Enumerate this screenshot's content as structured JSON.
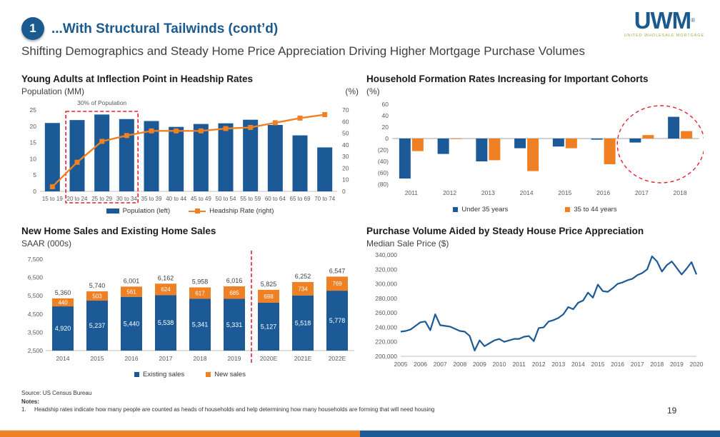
{
  "header": {
    "badge": "1",
    "title": "...With Structural Tailwinds (cont’d)",
    "subtitle": "Shifting Demographics and Steady Home Price Appreciation Driving Higher Mortgage Purchase Volumes",
    "logo": {
      "name": "UWM",
      "reg": "®",
      "tagline": "UNITED WHOLESALE MORTGAGE"
    }
  },
  "colors": {
    "blue": "#1b5a96",
    "orange": "#ef8023",
    "red": "#e8202e",
    "navy_text": "#1b5a8e",
    "axis_text": "#595959",
    "olive": "#a8a94e"
  },
  "chart_data": [
    {
      "type": "bar",
      "subtype": "bar+line-combo",
      "title": "Young Adults at Inflection Point in Headship Rates",
      "left_axis_label": "Population (MM)",
      "right_axis_label": "(%)",
      "categories": [
        "15 to 19",
        "20 to 24",
        "25 to 29",
        "30 to 34",
        "35 to 39",
        "40 to 44",
        "45 to 49",
        "50 to 54",
        "55 to 59",
        "60 to 64",
        "65 to 69",
        "70 to 74"
      ],
      "series": [
        {
          "name": "Population (left)",
          "kind": "bar",
          "axis": "left",
          "values": [
            21.0,
            21.9,
            23.6,
            22.2,
            21.6,
            19.8,
            20.7,
            20.9,
            22.0,
            20.4,
            17.2,
            13.5
          ]
        },
        {
          "name": "Headship Rate (right)",
          "kind": "line",
          "axis": "right",
          "values": [
            4,
            25,
            43,
            48,
            52,
            52,
            52,
            54,
            55,
            59,
            63,
            66
          ]
        }
      ],
      "left_ylim": [
        0,
        25
      ],
      "left_ticks": [
        0,
        5,
        10,
        15,
        20,
        25
      ],
      "right_ylim": [
        0,
        70
      ],
      "right_ticks": [
        0,
        10,
        20,
        30,
        40,
        50,
        60,
        70
      ],
      "grid": false,
      "legend_position": "bottom",
      "annotation": {
        "label": "30% of Population",
        "shape": "dashed-rect",
        "from_index": 1,
        "to_index": 3
      }
    },
    {
      "type": "bar",
      "subtype": "grouped-bar",
      "title": "Household Formation Rates Increasing for Important Cohorts",
      "axis_label": "(%)",
      "categories": [
        "2011",
        "2012",
        "2013",
        "2014",
        "2015",
        "2016",
        "2017",
        "2018"
      ],
      "series": [
        {
          "name": "Under 35 years",
          "values": [
            -70,
            -27,
            -40,
            -17,
            -14,
            -2,
            -7,
            38
          ]
        },
        {
          "name": "35 to 44 years",
          "values": [
            -22,
            -1,
            -38,
            -57,
            -17,
            -45,
            6,
            13
          ]
        }
      ],
      "ylim": [
        -80,
        60
      ],
      "ticks": [
        60,
        40,
        20,
        0,
        -20,
        -40,
        -60,
        -80
      ],
      "negative_format": "parentheses",
      "grid": false,
      "legend_position": "bottom",
      "annotation": {
        "shape": "dashed-ellipse",
        "from_index": 6,
        "to_index": 7
      }
    },
    {
      "type": "bar",
      "subtype": "stacked-bar",
      "title": "New Home Sales and Existing Home Sales",
      "axis_label": "SAAR (000s)",
      "categories": [
        "2014",
        "2015",
        "2016",
        "2017",
        "2018",
        "2019",
        "2020E",
        "2021E",
        "2022E"
      ],
      "series": [
        {
          "name": "Existing sales",
          "values": [
            4920,
            5237,
            5440,
            5538,
            5341,
            5331,
            5127,
            5518,
            5778
          ]
        },
        {
          "name": "New sales",
          "values": [
            440,
            503,
            561,
            624,
            617,
            685,
            698,
            734,
            769
          ]
        }
      ],
      "totals": [
        5360,
        5740,
        6001,
        6162,
        5958,
        6016,
        5825,
        6252,
        6547
      ],
      "ylim": [
        2500,
        7500
      ],
      "ticks": [
        2500,
        3500,
        4500,
        5500,
        6500,
        7500
      ],
      "grid": false,
      "legend_position": "bottom",
      "annotation": {
        "shape": "dashed-vline",
        "after_index": 5
      }
    },
    {
      "type": "line",
      "title": "Purchase Volume Aided by Steady House Price Appreciation",
      "axis_label": "Median Sale Price ($)",
      "x_ticks": [
        "2005",
        "2006",
        "2007",
        "2008",
        "2009",
        "2010",
        "2011",
        "2012",
        "2013",
        "2014",
        "2015",
        "2016",
        "2017",
        "2018",
        "2019",
        "2020"
      ],
      "x_start": 2005,
      "x_step": 0.25,
      "values": [
        234000,
        235000,
        237000,
        242000,
        247000,
        248000,
        236000,
        258000,
        243000,
        242000,
        241000,
        238000,
        235000,
        234000,
        228000,
        208000,
        222000,
        214000,
        218000,
        222000,
        224000,
        220000,
        222000,
        224000,
        224000,
        227000,
        228000,
        221000,
        239000,
        240000,
        248000,
        250000,
        253000,
        258000,
        268000,
        265000,
        274000,
        277000,
        288000,
        281000,
        299000,
        290000,
        289000,
        294000,
        300000,
        302000,
        305000,
        307000,
        312000,
        315000,
        320000,
        338000,
        331000,
        317000,
        326000,
        331000,
        322000,
        313000,
        321000,
        330000,
        313000
      ],
      "ylim": [
        200000,
        340000
      ],
      "ticks": [
        200000,
        220000,
        240000,
        260000,
        280000,
        300000,
        320000,
        340000
      ],
      "grid": false,
      "legend_position": "none"
    }
  ],
  "footer": {
    "source": "Source: US Census Bureau",
    "notes_label": "Notes:",
    "note1_num": "1.",
    "note1": "Headship rates indicate how many people are counted as heads of households and help determining how many households are forming that will need housing",
    "page": "19"
  }
}
